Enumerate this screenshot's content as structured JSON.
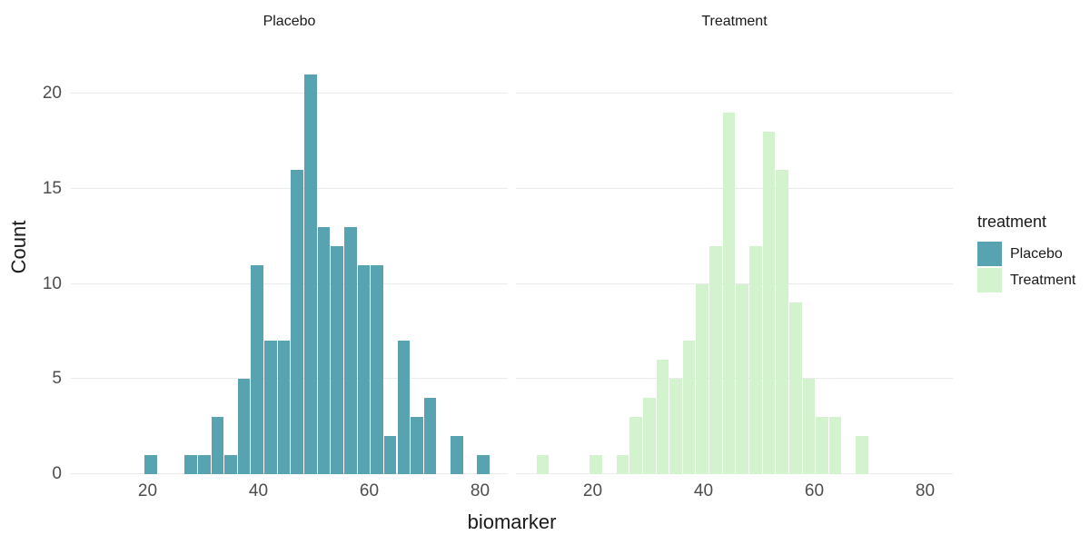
{
  "figure": {
    "background": "#ffffff"
  },
  "colors": {
    "grid": "#ebebeb",
    "tick_text": "#4d4d4d",
    "title_text": "#1a1a1a",
    "placebo_fill": "#58a3b2",
    "treatment_fill": "#d3f2ce"
  },
  "chart_data": {
    "type": "bar",
    "subtype": "faceted-histogram",
    "faceted_by": "treatment",
    "bin_width": 2.4,
    "grid": "horizontal-major-only",
    "legend_position": "right",
    "x": {
      "label": "biomarker",
      "ticks": [
        20,
        40,
        60,
        80
      ],
      "min": 6,
      "max": 85
    },
    "y": {
      "label": "Count",
      "ticks": [
        0,
        5,
        10,
        15,
        20
      ],
      "max": 23
    },
    "facets": [
      {
        "title": "Placebo",
        "fill": "#58a3b2",
        "bins": [
          [
            20.6,
            1
          ],
          [
            27.8,
            1
          ],
          [
            30.2,
            1
          ],
          [
            32.6,
            3
          ],
          [
            35.0,
            1
          ],
          [
            37.4,
            5
          ],
          [
            39.8,
            11
          ],
          [
            42.2,
            7
          ],
          [
            44.6,
            7
          ],
          [
            47.0,
            16
          ],
          [
            49.4,
            21
          ],
          [
            51.8,
            13
          ],
          [
            54.2,
            12
          ],
          [
            56.6,
            13
          ],
          [
            59.0,
            11
          ],
          [
            61.4,
            11
          ],
          [
            63.8,
            2
          ],
          [
            66.2,
            7
          ],
          [
            68.6,
            3
          ],
          [
            71.0,
            4
          ],
          [
            75.8,
            2
          ],
          [
            80.6,
            1
          ]
        ]
      },
      {
        "title": "Treatment",
        "fill": "#d3f2ce",
        "bins": [
          [
            11.0,
            1
          ],
          [
            20.6,
            1
          ],
          [
            25.4,
            1
          ],
          [
            27.8,
            3
          ],
          [
            30.2,
            4
          ],
          [
            32.6,
            6
          ],
          [
            35.0,
            5
          ],
          [
            37.4,
            7
          ],
          [
            39.8,
            10
          ],
          [
            42.2,
            12
          ],
          [
            44.6,
            19
          ],
          [
            47.0,
            10
          ],
          [
            49.4,
            12
          ],
          [
            51.8,
            18
          ],
          [
            54.2,
            16
          ],
          [
            56.6,
            9
          ],
          [
            59.0,
            5
          ],
          [
            61.4,
            3
          ],
          [
            63.8,
            3
          ],
          [
            68.6,
            2
          ]
        ]
      }
    ],
    "legend": {
      "title": "treatment",
      "entries": [
        {
          "label": "Placebo",
          "color": "#58a3b2"
        },
        {
          "label": "Treatment",
          "color": "#d3f2ce"
        }
      ]
    }
  }
}
